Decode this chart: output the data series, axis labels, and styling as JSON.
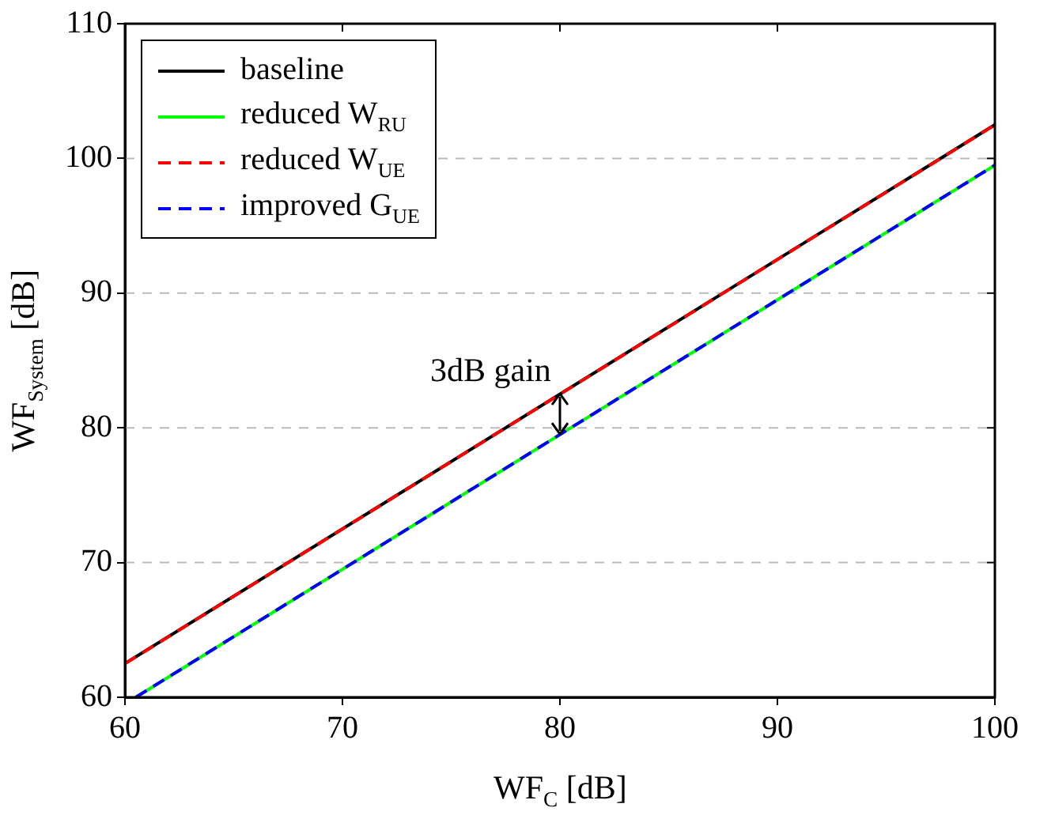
{
  "chart_data": {
    "type": "line",
    "xlabel": "WF$_{C}$ [dB]",
    "ylabel": "WF$_{System}$ [dB]",
    "xlim": [
      60,
      100
    ],
    "xticks": [
      60,
      70,
      80,
      90,
      100
    ],
    "ylim": [
      60,
      110
    ],
    "yticks": [
      60,
      70,
      80,
      90,
      100,
      110
    ],
    "grid": "y",
    "legend": "top left",
    "marker": "none",
    "series": [
      {
        "name": "baseline",
        "color": "#000000",
        "line_style": "solid",
        "x": [
          60,
          100
        ],
        "values": [
          62.5,
          102.5
        ]
      },
      {
        "name": "reduced W$_{RU}$",
        "color": "#00ff00",
        "line_style": "solid",
        "x": [
          60.5,
          100
        ],
        "values": [
          60,
          99.5
        ]
      },
      {
        "name": "reduced W$_{UE}$",
        "color": "#ff0000",
        "line_style": "dashed",
        "x": [
          60,
          100
        ],
        "values": [
          62.5,
          102.5
        ]
      },
      {
        "name": "improved G$_{UE}$",
        "color": "#0000ff",
        "line_style": "dashed",
        "x": [
          60.5,
          100
        ],
        "values": [
          60,
          99.5
        ]
      }
    ],
    "annotations": [
      {
        "text": "3dB gain",
        "x": 80,
        "y": 82.5
      }
    ]
  }
}
